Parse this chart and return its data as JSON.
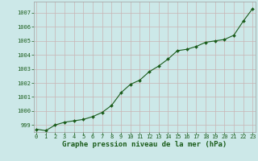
{
  "x": [
    0,
    1,
    2,
    3,
    4,
    5,
    6,
    7,
    8,
    9,
    10,
    11,
    12,
    13,
    14,
    15,
    16,
    17,
    18,
    19,
    20,
    21,
    22,
    23
  ],
  "y": [
    998.7,
    998.6,
    999.0,
    999.2,
    999.3,
    999.4,
    999.6,
    999.9,
    1000.4,
    1001.3,
    1001.9,
    1002.2,
    1002.8,
    1003.2,
    1003.7,
    1004.3,
    1004.4,
    1004.6,
    1004.9,
    1005.0,
    1005.1,
    1005.4,
    1006.4,
    1007.3
  ],
  "line_color": "#1a5c1a",
  "marker": "D",
  "marker_size": 2.0,
  "line_width": 0.8,
  "background_color": "#cce8e8",
  "grid_color": "#c8b4b4",
  "xlabel": "Graphe pression niveau de la mer (hPa)",
  "xlabel_fontsize": 6.5,
  "xlabel_color": "#1a5c1a",
  "tick_label_color": "#1a5c1a",
  "ylim": [
    998.5,
    1007.8
  ],
  "xlim": [
    -0.3,
    23.3
  ],
  "yticks": [
    999,
    1000,
    1001,
    1002,
    1003,
    1004,
    1005,
    1006,
    1007
  ],
  "xticks": [
    0,
    1,
    2,
    3,
    4,
    5,
    6,
    7,
    8,
    9,
    10,
    11,
    12,
    13,
    14,
    15,
    16,
    17,
    18,
    19,
    20,
    21,
    22,
    23
  ],
  "tick_fontsize": 5.0,
  "spine_color": "#a0a0a0"
}
